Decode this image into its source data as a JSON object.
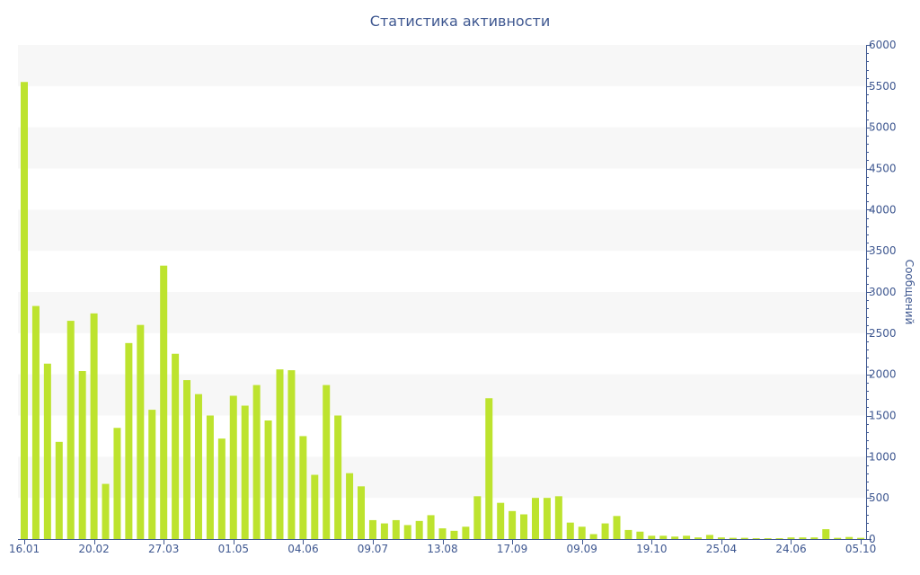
{
  "chart_data": {
    "type": "bar",
    "title": "Статистика активности",
    "ylabel": "Сообщений",
    "xlabel": "",
    "ylim": [
      0,
      6000
    ],
    "yticks": [
      0,
      500,
      1000,
      1500,
      2000,
      2500,
      3000,
      3500,
      4000,
      4500,
      5000,
      5500,
      6000
    ],
    "y_axis_side": "right",
    "grid": "alternating horizontal bands",
    "bar_color": "#bde32e",
    "band_color": "#f7f7f7",
    "text_color": "#3e5790",
    "x_tick_labels": [
      {
        "index": 0,
        "label": "16.01"
      },
      {
        "index": 6,
        "label": "20.02"
      },
      {
        "index": 12,
        "label": "27.03"
      },
      {
        "index": 18,
        "label": "01.05"
      },
      {
        "index": 24,
        "label": "04.06"
      },
      {
        "index": 30,
        "label": "09.07"
      },
      {
        "index": 36,
        "label": "13.08"
      },
      {
        "index": 42,
        "label": "17.09"
      },
      {
        "index": 48,
        "label": "09.09"
      },
      {
        "index": 54,
        "label": "19.10"
      },
      {
        "index": 60,
        "label": "25.04"
      },
      {
        "index": 66,
        "label": "24.06"
      },
      {
        "index": 72,
        "label": "05.10"
      }
    ],
    "values": [
      5550,
      2830,
      2130,
      1180,
      2650,
      2040,
      2740,
      670,
      1350,
      2380,
      2600,
      1570,
      3320,
      2250,
      1930,
      1760,
      1500,
      1220,
      1740,
      1620,
      1870,
      1440,
      2060,
      2050,
      1250,
      780,
      1870,
      1500,
      800,
      640,
      230,
      190,
      230,
      170,
      220,
      290,
      130,
      100,
      150,
      520,
      1710,
      440,
      340,
      300,
      500,
      500,
      520,
      200,
      150,
      60,
      190,
      280,
      110,
      90,
      40,
      40,
      30,
      40,
      20,
      50,
      20,
      15,
      15,
      10,
      10,
      10,
      20,
      20,
      20,
      120,
      15,
      25,
      15
    ]
  }
}
